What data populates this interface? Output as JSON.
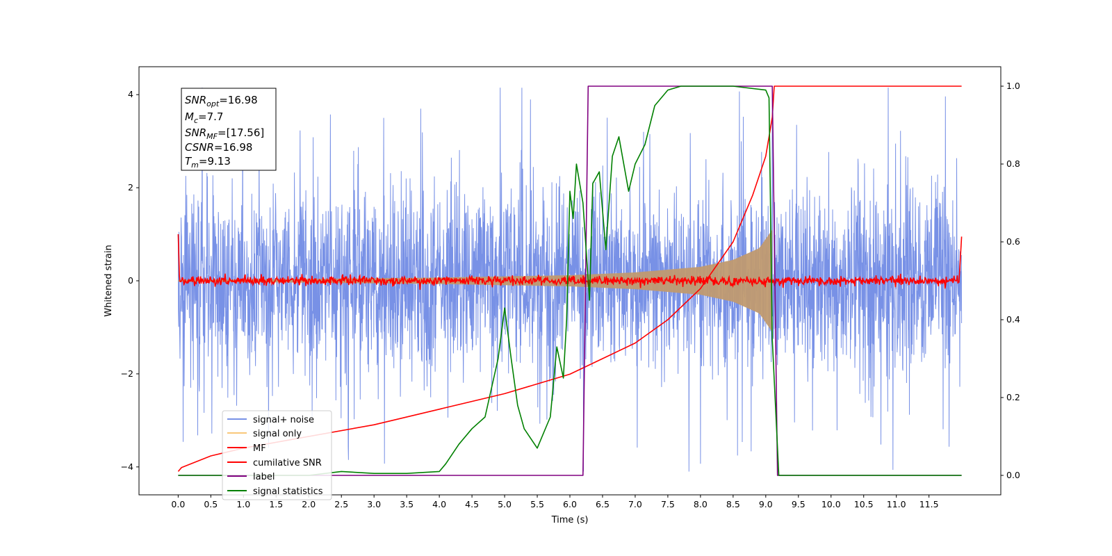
{
  "chart_data": {
    "type": "line",
    "xlabel": "Time (s)",
    "ylabel": "Whitened strain",
    "xlim": [
      -0.6,
      12.6
    ],
    "ylim": [
      -4.6,
      4.6
    ],
    "y2lim": [
      -0.05,
      1.05
    ],
    "x_ticks": [
      "0.0",
      "0.5",
      "1.0",
      "1.5",
      "2.0",
      "2.5",
      "3.0",
      "3.5",
      "4.0",
      "4.5",
      "5.0",
      "5.5",
      "6.0",
      "6.5",
      "7.0",
      "7.5",
      "8.0",
      "8.5",
      "9.0",
      "9.5",
      "10.0",
      "10.5",
      "11.0",
      "11.5"
    ],
    "y_ticks": [
      "4",
      "2",
      "0",
      "−2",
      "−4"
    ],
    "y2_ticks": [
      "1.0",
      "0.8",
      "0.6",
      "0.4",
      "0.2",
      "0.0"
    ],
    "annotation": {
      "snr_opt": {
        "main": "SNR",
        "sub": "opt",
        "value": "=16.98"
      },
      "mc": {
        "main": "M",
        "sub": "c",
        "value": "=7.7"
      },
      "snr_mf": {
        "main": "SNR",
        "sub": "MF",
        "value": "=[17.56]"
      },
      "csnr": {
        "main": "CSNR",
        "sub": "",
        "value": "=16.98"
      },
      "tm": {
        "main": "T",
        "sub": "m",
        "value": "=9.13"
      }
    },
    "series": [
      {
        "name": "signal+ noise",
        "color": "#7891e6",
        "description": "noisy whitened strain, amplitude approx ±2-4"
      },
      {
        "name": "signal only",
        "color": "#f9c87a",
        "description": "chirp envelope growing from 0 to ~9.1 s",
        "envelope": {
          "x": [
            0.0,
            2.0,
            4.0,
            6.0,
            7.0,
            8.0,
            8.5,
            8.9,
            9.1
          ],
          "amp": [
            0.02,
            0.04,
            0.07,
            0.12,
            0.18,
            0.3,
            0.45,
            0.7,
            1.1
          ]
        }
      },
      {
        "name": "MF",
        "color": "#ff0000",
        "description": "matched filter output near 0 with noise"
      },
      {
        "name": "cumilative SNR",
        "color": "#ff0000",
        "axis": "right",
        "x": [
          0.0,
          0.05,
          0.5,
          1.0,
          2.0,
          3.0,
          4.0,
          5.0,
          6.0,
          6.5,
          7.0,
          7.5,
          8.0,
          8.5,
          8.8,
          9.0,
          9.1,
          9.13,
          12.0
        ],
        "y": [
          0.01,
          0.02,
          0.05,
          0.07,
          0.1,
          0.13,
          0.17,
          0.21,
          0.26,
          0.3,
          0.34,
          0.4,
          0.48,
          0.6,
          0.72,
          0.82,
          0.92,
          1.0,
          1.0
        ]
      },
      {
        "name": "label",
        "color": "#800080",
        "axis": "right",
        "x": [
          0.0,
          6.2,
          6.28,
          9.1,
          9.18,
          12.0
        ],
        "y": [
          0.0,
          0.0,
          1.0,
          1.0,
          0.0,
          0.0
        ]
      },
      {
        "name": "signal statistics",
        "color": "#008000",
        "axis": "right",
        "x": [
          0.0,
          2.0,
          2.5,
          3.0,
          3.5,
          4.0,
          4.1,
          4.3,
          4.5,
          4.7,
          4.9,
          5.0,
          5.1,
          5.2,
          5.3,
          5.5,
          5.7,
          5.8,
          5.9,
          5.95,
          6.0,
          6.05,
          6.1,
          6.2,
          6.3,
          6.35,
          6.45,
          6.55,
          6.65,
          6.75,
          6.9,
          7.0,
          7.15,
          7.3,
          7.5,
          7.7,
          8.0,
          8.5,
          9.0,
          9.05,
          9.1,
          9.2,
          12.0
        ],
        "y": [
          0.0,
          0.0,
          0.01,
          0.005,
          0.005,
          0.01,
          0.03,
          0.08,
          0.12,
          0.15,
          0.3,
          0.43,
          0.3,
          0.18,
          0.12,
          0.07,
          0.15,
          0.33,
          0.25,
          0.4,
          0.73,
          0.66,
          0.8,
          0.7,
          0.45,
          0.75,
          0.78,
          0.58,
          0.82,
          0.87,
          0.73,
          0.8,
          0.85,
          0.95,
          0.99,
          1.0,
          1.0,
          1.0,
          0.99,
          0.97,
          0.35,
          0.0,
          0.0
        ]
      }
    ],
    "legend": {
      "position": "lower-left",
      "entries": [
        "signal+ noise",
        "signal only",
        "MF",
        "cumilative SNR",
        "label",
        "signal statistics"
      ]
    }
  }
}
